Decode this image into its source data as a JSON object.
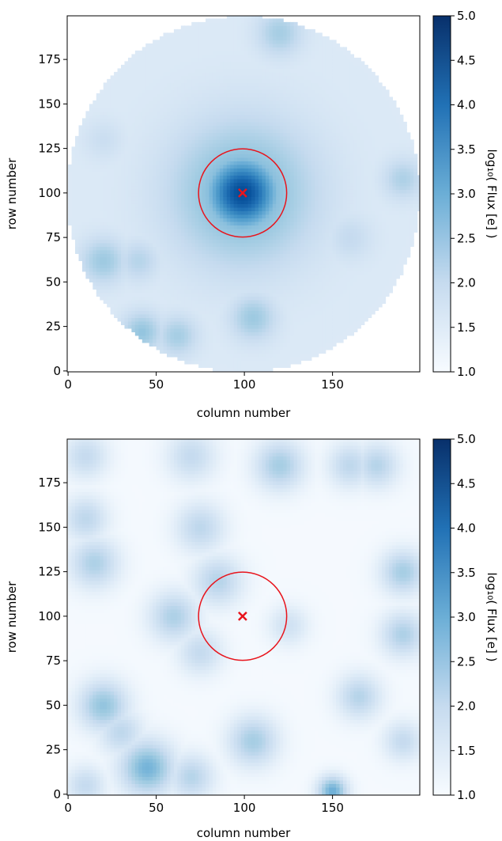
{
  "colorbar_ticks": [
    "1.0",
    "1.5",
    "2.0",
    "2.5",
    "3.0",
    "3.5",
    "4.0",
    "4.5",
    "5.0"
  ],
  "colors": {
    "cmap_low": "#f7fbff",
    "cmap_mid": "#6baed6",
    "cmap_high": "#08306b",
    "marker": "#e8141c"
  },
  "chart_data": [
    {
      "type": "heatmap",
      "xlabel": "column number",
      "ylabel": "row number",
      "colorbar_label": "log₁₀( Flux [e] )",
      "colorbar_range": [
        1.0,
        5.0
      ],
      "x_ticks": [
        0,
        50,
        100,
        150
      ],
      "y_ticks": [
        0,
        25,
        50,
        75,
        100,
        125,
        150,
        175
      ],
      "xlim": [
        -0.5,
        199.5
      ],
      "ylim": [
        -0.5,
        199.5
      ],
      "aperture_shape": "circle",
      "target": {
        "x": 99,
        "y": 100
      },
      "target_circle_radius": 25,
      "blobs": [
        {
          "x": 99,
          "y": 100,
          "s": 14,
          "v": 4.6
        },
        {
          "x": 99,
          "y": 100,
          "s": 28,
          "v": 3.0
        },
        {
          "x": 120,
          "y": 190,
          "s": 9,
          "v": 2.4
        },
        {
          "x": 20,
          "y": 62,
          "s": 9,
          "v": 2.5
        },
        {
          "x": 40,
          "y": 62,
          "s": 8,
          "v": 2.2
        },
        {
          "x": 42,
          "y": 22,
          "s": 8,
          "v": 2.6
        },
        {
          "x": 62,
          "y": 20,
          "s": 8,
          "v": 2.4
        },
        {
          "x": 105,
          "y": 30,
          "s": 9,
          "v": 2.5
        },
        {
          "x": 160,
          "y": 75,
          "s": 9,
          "v": 2.0
        },
        {
          "x": 190,
          "y": 108,
          "s": 8,
          "v": 2.3
        },
        {
          "x": 20,
          "y": 130,
          "s": 8,
          "v": 1.9
        }
      ]
    },
    {
      "type": "heatmap",
      "xlabel": "column number",
      "ylabel": "row number",
      "colorbar_label": "log₁₀( Flux [e] )",
      "colorbar_range": [
        1.0,
        5.0
      ],
      "x_ticks": [
        0,
        50,
        100,
        150
      ],
      "y_ticks": [
        0,
        25,
        50,
        75,
        100,
        125,
        150,
        175
      ],
      "xlim": [
        -0.5,
        199.5
      ],
      "ylim": [
        -0.5,
        199.5
      ],
      "aperture_shape": "square",
      "target": {
        "x": 99,
        "y": 100
      },
      "target_circle_radius": 25,
      "blobs": [
        {
          "x": 10,
          "y": 190,
          "s": 9,
          "v": 2.0
        },
        {
          "x": 70,
          "y": 190,
          "s": 10,
          "v": 2.0
        },
        {
          "x": 120,
          "y": 185,
          "s": 10,
          "v": 2.4
        },
        {
          "x": 160,
          "y": 185,
          "s": 9,
          "v": 2.1
        },
        {
          "x": 175,
          "y": 185,
          "s": 9,
          "v": 2.2
        },
        {
          "x": 10,
          "y": 155,
          "s": 9,
          "v": 2.1
        },
        {
          "x": 15,
          "y": 130,
          "s": 10,
          "v": 2.3
        },
        {
          "x": 75,
          "y": 150,
          "s": 10,
          "v": 2.1
        },
        {
          "x": 85,
          "y": 120,
          "s": 10,
          "v": 2.2
        },
        {
          "x": 60,
          "y": 100,
          "s": 10,
          "v": 2.3
        },
        {
          "x": 75,
          "y": 80,
          "s": 9,
          "v": 2.0
        },
        {
          "x": 125,
          "y": 95,
          "s": 8,
          "v": 1.8
        },
        {
          "x": 190,
          "y": 125,
          "s": 9,
          "v": 2.4
        },
        {
          "x": 190,
          "y": 90,
          "s": 9,
          "v": 2.3
        },
        {
          "x": 165,
          "y": 55,
          "s": 9,
          "v": 2.2
        },
        {
          "x": 20,
          "y": 50,
          "s": 10,
          "v": 2.6
        },
        {
          "x": 30,
          "y": 35,
          "s": 9,
          "v": 2.1
        },
        {
          "x": 10,
          "y": 5,
          "s": 8,
          "v": 2.0
        },
        {
          "x": 45,
          "y": 15,
          "s": 11,
          "v": 2.9
        },
        {
          "x": 70,
          "y": 10,
          "s": 9,
          "v": 2.2
        },
        {
          "x": 105,
          "y": 30,
          "s": 10,
          "v": 2.4
        },
        {
          "x": 150,
          "y": 2,
          "s": 6,
          "v": 3.0
        },
        {
          "x": 190,
          "y": 30,
          "s": 8,
          "v": 2.0
        }
      ]
    }
  ]
}
